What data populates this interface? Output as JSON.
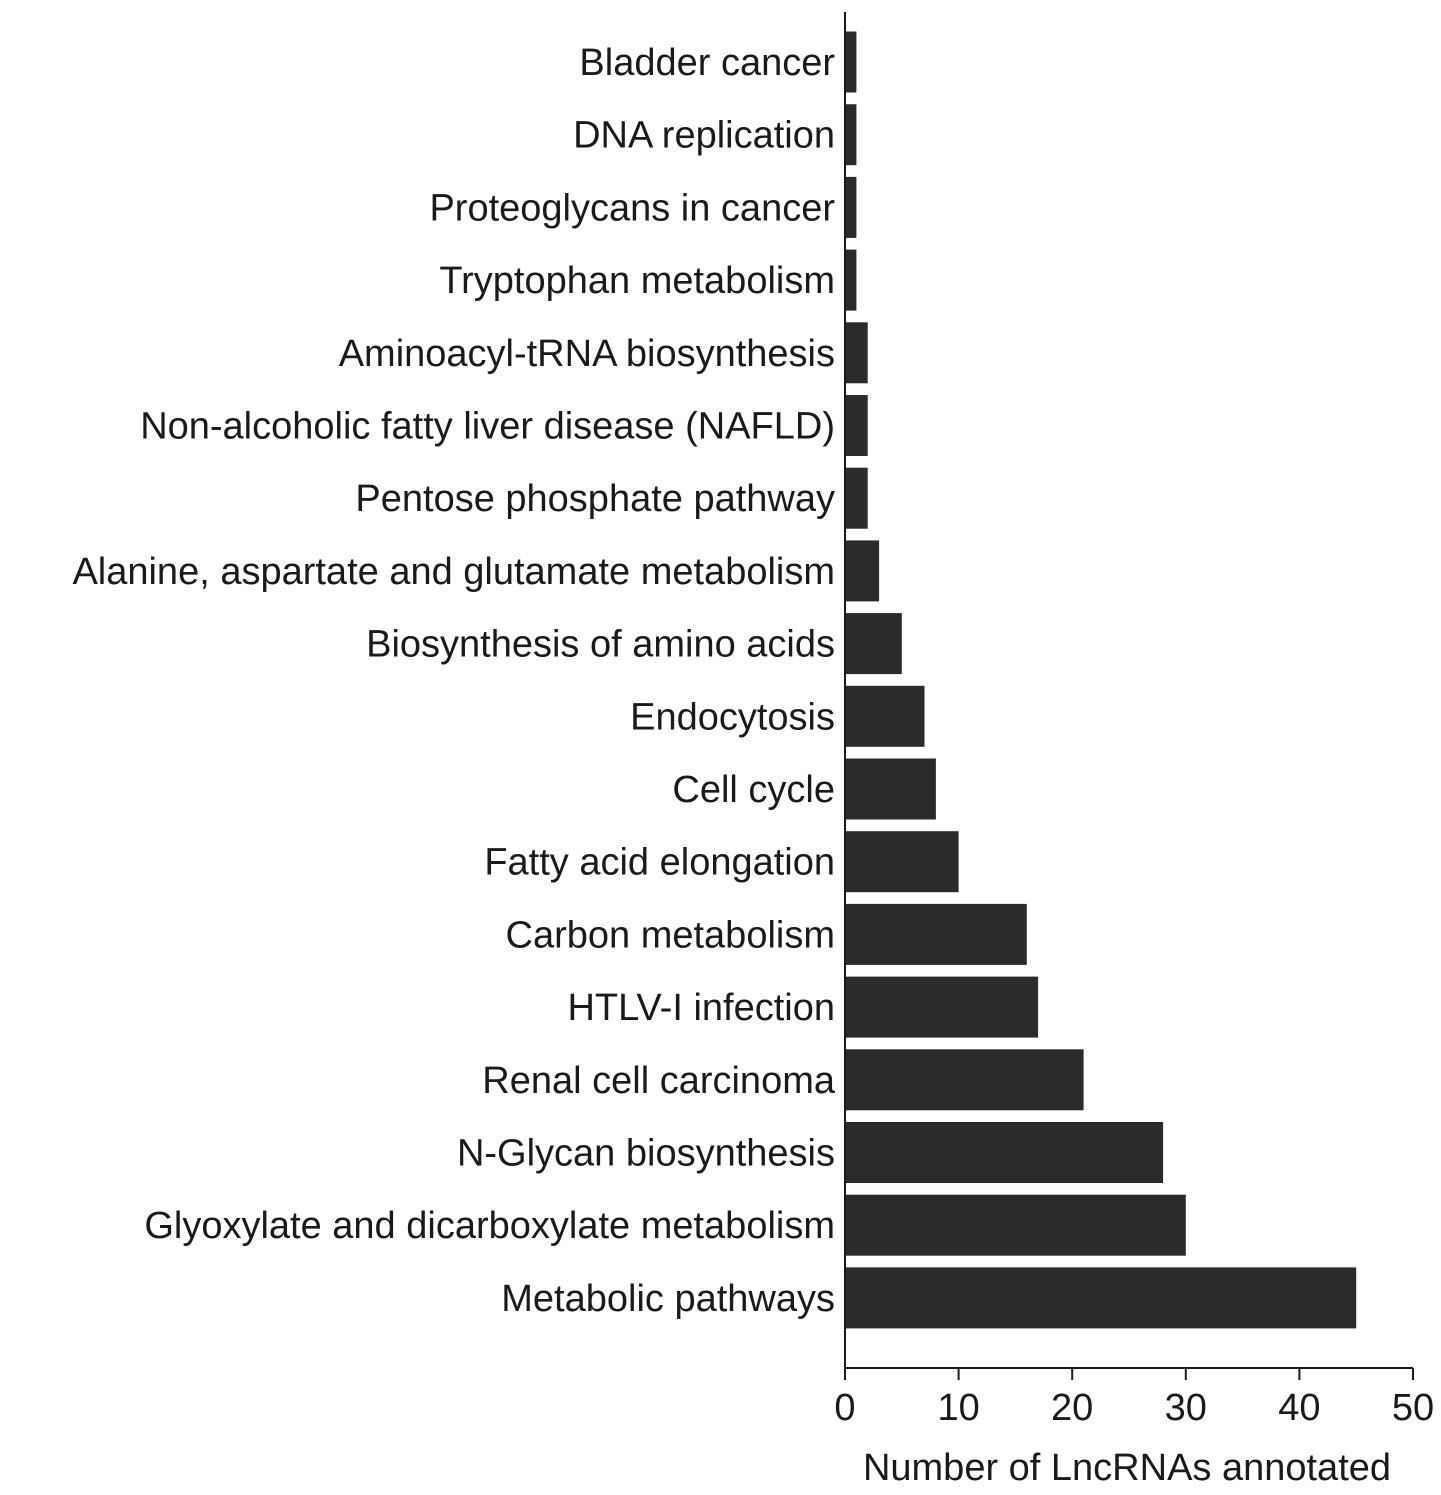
{
  "chart_data": {
    "type": "bar",
    "orientation": "horizontal",
    "title": "",
    "xlabel": "Number of LncRNAs annotated",
    "ylabel": "",
    "xlim": [
      0,
      50
    ],
    "xticks": [
      "0",
      "10",
      "20",
      "30",
      "40",
      "50"
    ],
    "grid": false,
    "legend": "none",
    "bar_color": "#2b2b2b",
    "categories": [
      "Bladder cancer",
      "DNA replication",
      "Proteoglycans in cancer",
      "Tryptophan metabolism",
      "Aminoacyl-tRNA biosynthesis",
      "Non-alcoholic fatty liver disease (NAFLD)",
      "Pentose phosphate pathway",
      "Alanine, aspartate and glutamate metabolism",
      "Biosynthesis of amino acids",
      "Endocytosis",
      "Cell cycle",
      "Fatty acid elongation",
      "Carbon metabolism",
      "HTLV-I infection",
      "Renal cell carcinoma",
      "N-Glycan biosynthesis",
      "Glyoxylate and dicarboxylate metabolism",
      "Metabolic pathways"
    ],
    "values": [
      1,
      1,
      1,
      1,
      2,
      2,
      2,
      3,
      5,
      7,
      8,
      10,
      16,
      17,
      21,
      28,
      30,
      45
    ]
  }
}
